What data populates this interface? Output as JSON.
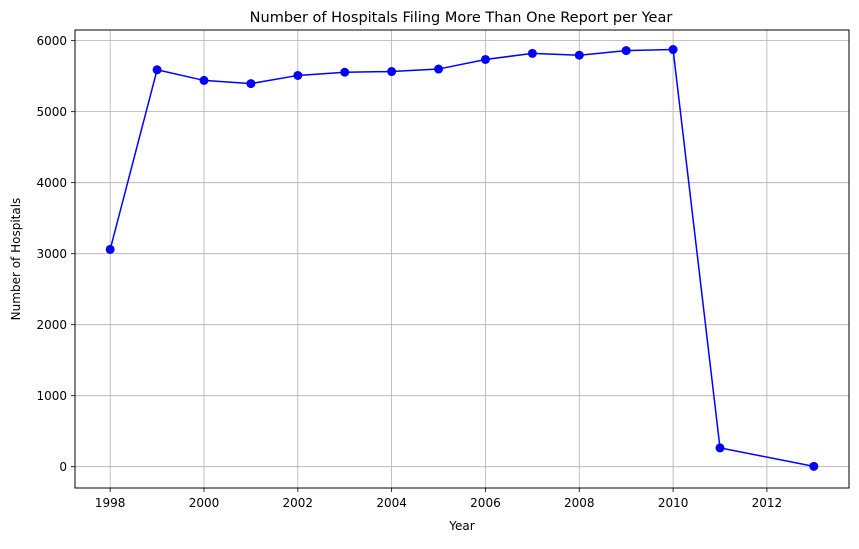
{
  "chart_data": {
    "type": "line",
    "title": "Number of Hospitals Filing More Than One Report per Year",
    "xlabel": "Year",
    "ylabel": "Number of Hospitals",
    "xlim": [
      1997.25,
      2013.75
    ],
    "ylim": [
      -300,
      6150
    ],
    "xticks": [
      1998,
      2000,
      2002,
      2004,
      2006,
      2008,
      2010,
      2012
    ],
    "yticks": [
      0,
      1000,
      2000,
      3000,
      4000,
      5000,
      6000
    ],
    "grid": true,
    "series": [
      {
        "color": "#0000ff",
        "marker": "circle",
        "x": [
          1998,
          1999,
          2000,
          2001,
          2002,
          2003,
          2004,
          2005,
          2006,
          2007,
          2008,
          2009,
          2010,
          2011,
          2013
        ],
        "y": [
          3060,
          5590,
          5440,
          5395,
          5510,
          5555,
          5565,
          5600,
          5735,
          5820,
          5795,
          5860,
          5875,
          265,
          5
        ]
      }
    ]
  }
}
